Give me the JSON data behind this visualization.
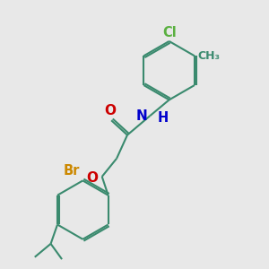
{
  "bg_color": "#e8e8e8",
  "bond_color": "#3a8a6e",
  "atom_colors": {
    "O": "#cc0000",
    "N": "#0000cc",
    "H": "#0000cc",
    "Br": "#cc8800",
    "Cl": "#5ab040"
  },
  "bond_width": 1.5,
  "font_size": 10.5
}
